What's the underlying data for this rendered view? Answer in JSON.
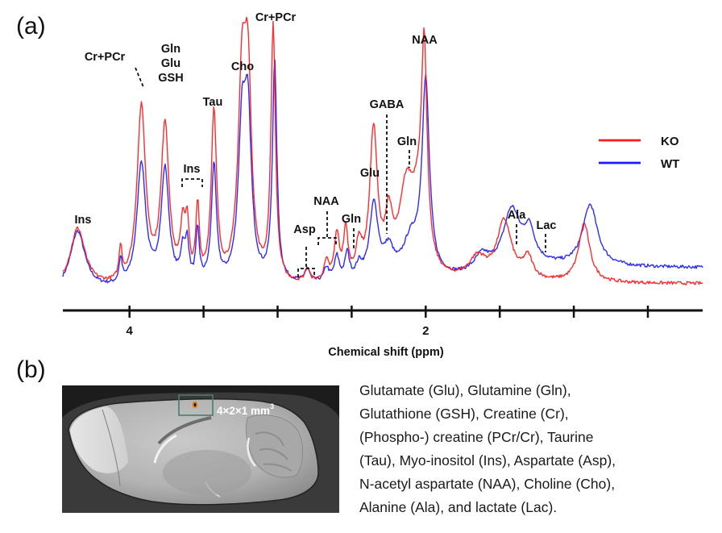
{
  "panels": {
    "a_label": "(a)",
    "b_label": "(b)"
  },
  "chart_data": {
    "type": "line",
    "title": "",
    "xlabel": "Chemical shift (ppm)",
    "ylabel": "",
    "x_reversed": true,
    "xlim": [
      4.45,
      0.13
    ],
    "ylim": [
      0,
      100
    ],
    "grid": false,
    "x_ticks": [
      4.0,
      3.5,
      3.0,
      2.5,
      2.0,
      1.5,
      1.0,
      0.5
    ],
    "x_tick_labels": [
      {
        "value": 4.0,
        "label": "4"
      },
      {
        "value": 2.0,
        "label": "2"
      }
    ],
    "legend": {
      "placement": "right",
      "entries": [
        {
          "name": "KO",
          "color": "#ff1a1a"
        },
        {
          "name": "WT",
          "color": "#1a1aff"
        }
      ]
    },
    "series": [
      {
        "name": "KO",
        "color": "#ff1a1a",
        "baseline": [
          [
            4.45,
            4
          ],
          [
            3.0,
            4
          ],
          [
            2.0,
            6
          ],
          [
            1.0,
            6
          ],
          [
            0.13,
            6
          ]
        ],
        "peaks": [
          {
            "ppm": 4.35,
            "height": 22,
            "width": 0.06
          },
          {
            "ppm": 4.06,
            "height": 12,
            "width": 0.012
          },
          {
            "ppm": 3.92,
            "height": 66,
            "width": 0.035
          },
          {
            "ppm": 3.76,
            "height": 59,
            "width": 0.032
          },
          {
            "ppm": 3.64,
            "height": 20,
            "width": 0.02
          },
          {
            "ppm": 3.61,
            "height": 18,
            "width": 0.015
          },
          {
            "ppm": 3.54,
            "height": 27,
            "width": 0.014
          },
          {
            "ppm": 3.43,
            "height": 63,
            "width": 0.022
          },
          {
            "ppm": 3.24,
            "height": 72,
            "width": 0.032
          },
          {
            "ppm": 3.2,
            "height": 68,
            "width": 0.028
          },
          {
            "ppm": 3.03,
            "height": 96,
            "width": 0.018
          },
          {
            "ppm": 2.8,
            "height": 5,
            "width": 0.02
          },
          {
            "ppm": 2.67,
            "height": 7,
            "width": 0.02
          },
          {
            "ppm": 2.6,
            "height": 17,
            "width": 0.02
          },
          {
            "ppm": 2.54,
            "height": 18,
            "width": 0.018
          },
          {
            "ppm": 2.45,
            "height": 12,
            "width": 0.025
          },
          {
            "ppm": 2.36,
            "height": 12,
            "width": 0.03
          },
          {
            "ppm": 2.35,
            "height": 44,
            "width": 0.03
          },
          {
            "ppm": 2.25,
            "height": 20,
            "width": 0.03
          },
          {
            "ppm": 2.13,
            "height": 32,
            "width": 0.06
          },
          {
            "ppm": 2.05,
            "height": 20,
            "width": 0.05
          },
          {
            "ppm": 2.01,
            "height": 76,
            "width": 0.022
          },
          {
            "ppm": 1.65,
            "height": 8,
            "width": 0.07
          },
          {
            "ppm": 1.47,
            "height": 22,
            "width": 0.06
          },
          {
            "ppm": 1.31,
            "height": 8,
            "width": 0.04
          },
          {
            "ppm": 0.93,
            "height": 22,
            "width": 0.045
          }
        ]
      },
      {
        "name": "WT",
        "color": "#1a1aff",
        "baseline": [
          [
            4.45,
            3
          ],
          [
            3.0,
            5
          ],
          [
            2.0,
            6
          ],
          [
            1.2,
            12
          ],
          [
            0.13,
            12
          ]
        ],
        "peaks": [
          {
            "ppm": 4.35,
            "height": 22,
            "width": 0.06
          },
          {
            "ppm": 4.06,
            "height": 9,
            "width": 0.012
          },
          {
            "ppm": 3.92,
            "height": 46,
            "width": 0.035
          },
          {
            "ppm": 3.76,
            "height": 43,
            "width": 0.032
          },
          {
            "ppm": 3.64,
            "height": 12,
            "width": 0.018
          },
          {
            "ppm": 3.61,
            "height": 14,
            "width": 0.014
          },
          {
            "ppm": 3.54,
            "height": 19,
            "width": 0.014
          },
          {
            "ppm": 3.43,
            "height": 44,
            "width": 0.02
          },
          {
            "ppm": 3.24,
            "height": 55,
            "width": 0.03
          },
          {
            "ppm": 3.2,
            "height": 56,
            "width": 0.028
          },
          {
            "ppm": 3.02,
            "height": 82,
            "width": 0.018
          },
          {
            "ppm": 2.8,
            "height": 5,
            "width": 0.02
          },
          {
            "ppm": 2.67,
            "height": 5,
            "width": 0.02
          },
          {
            "ppm": 2.6,
            "height": 9,
            "width": 0.02
          },
          {
            "ppm": 2.53,
            "height": 10,
            "width": 0.018
          },
          {
            "ppm": 2.45,
            "height": 5,
            "width": 0.025
          },
          {
            "ppm": 2.35,
            "height": 28,
            "width": 0.035
          },
          {
            "ppm": 2.25,
            "height": 10,
            "width": 0.04
          },
          {
            "ppm": 2.1,
            "height": 14,
            "width": 0.07
          },
          {
            "ppm": 2.0,
            "height": 72,
            "width": 0.03
          },
          {
            "ppm": 1.62,
            "height": 6,
            "width": 0.06
          },
          {
            "ppm": 1.42,
            "height": 22,
            "width": 0.07
          },
          {
            "ppm": 1.3,
            "height": 12,
            "width": 0.045
          },
          {
            "ppm": 0.89,
            "height": 23,
            "width": 0.06
          }
        ]
      }
    ],
    "annotations": [
      {
        "text": "Ins",
        "ppm": 4.35,
        "lines": [
          "Ins"
        ],
        "style": "none"
      },
      {
        "text": "Cr+PCr",
        "ppm": 3.92,
        "lines": [
          "Cr+PCr"
        ],
        "style": "dashed-diagonal"
      },
      {
        "text": "Gln Glu GSH",
        "ppm": 3.76,
        "lines": [
          "Gln",
          "Glu",
          "GSH"
        ],
        "style": "none"
      },
      {
        "text": "Ins",
        "ppm": 3.58,
        "lines": [
          "Ins"
        ],
        "style": "bracket"
      },
      {
        "text": "Tau",
        "ppm": 3.43,
        "lines": [
          "Tau"
        ],
        "style": "none"
      },
      {
        "text": "Cho",
        "ppm": 3.22,
        "lines": [
          "Cho"
        ],
        "style": "none"
      },
      {
        "text": "Cr+PCr",
        "ppm": 3.03,
        "lines": [
          "Cr+PCr"
        ],
        "style": "none"
      },
      {
        "text": "Asp",
        "ppm": 2.73,
        "lines": [
          "Asp"
        ],
        "style": "bracket"
      },
      {
        "text": "NAA",
        "ppm": 2.57,
        "lines": [
          "NAA"
        ],
        "style": "bracket"
      },
      {
        "text": "Gln",
        "ppm": 2.45,
        "lines": [
          "Gln"
        ],
        "style": "dashed"
      },
      {
        "text": "Glu",
        "ppm": 2.35,
        "lines": [
          "Glu"
        ],
        "style": "none"
      },
      {
        "text": "GABA",
        "ppm": 2.28,
        "lines": [
          "GABA"
        ],
        "style": "dashed"
      },
      {
        "text": "Gln",
        "ppm": 2.12,
        "lines": [
          "Gln"
        ],
        "style": "dashed"
      },
      {
        "text": "NAA",
        "ppm": 2.01,
        "lines": [
          "NAA"
        ],
        "style": "none"
      },
      {
        "text": "Ala",
        "ppm": 1.47,
        "lines": [
          "Ala"
        ],
        "style": "dashed"
      },
      {
        "text": "Lac",
        "ppm": 1.31,
        "lines": [
          "Lac"
        ],
        "style": "dashed"
      }
    ]
  },
  "mri": {
    "voxel_label": "4×2×1 mm",
    "voxel_label_sup": "3",
    "voxel_box_color": "#4e7a6a",
    "voxel_dot_color": "#e07a10"
  },
  "abbreviations": {
    "lines": [
      "Glutamate (Glu), Glutamine (Gln),",
      "Glutathione (GSH), Creatine (Cr),",
      "(Phospho-) creatine (PCr/Cr), Taurine",
      "(Tau), Myo-inositol (Ins), Aspartate (Asp),",
      "N-acetyl aspartate (NAA), Choline (Cho),",
      "Alanine (Ala), and lactate (Lac)."
    ]
  }
}
